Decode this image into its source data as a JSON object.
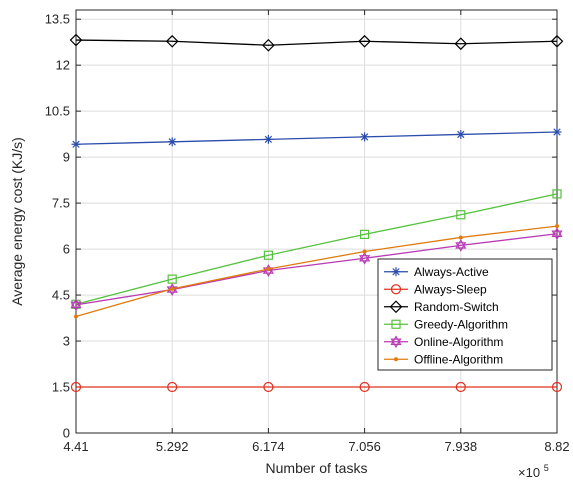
{
  "chart_data": {
    "type": "line",
    "title": "",
    "xlabel": "Number of tasks",
    "ylabel": "Average energy cost (KJ/s)",
    "x_exponent_label": "×10",
    "x_exponent_power": "5",
    "x": [
      4.41,
      5.292,
      6.174,
      7.056,
      7.938,
      8.82
    ],
    "x_tick_labels": [
      "4.41",
      "5.292",
      "6.174",
      "7.056",
      "7.938",
      "8.82"
    ],
    "xlim": [
      4.41,
      8.82
    ],
    "ylim": [
      0,
      13.8
    ],
    "y_ticks": [
      0,
      1.5,
      3,
      4.5,
      6,
      7.5,
      9,
      10.5,
      12,
      13.5
    ],
    "y_tick_labels": [
      "0",
      "1.5",
      "3",
      "4.5",
      "6",
      "7.5",
      "9",
      "10.5",
      "12",
      "13.5"
    ],
    "grid": true,
    "legend_position": "lower-right",
    "series": [
      {
        "name": "Always-Active",
        "color": "#2b4dab",
        "marker": "asterisk",
        "values": [
          9.42,
          9.5,
          9.58,
          9.66,
          9.74,
          9.82
        ]
      },
      {
        "name": "Always-Sleep",
        "color": "#e0301e",
        "marker": "circle",
        "values": [
          1.5,
          1.5,
          1.5,
          1.5,
          1.5,
          1.5
        ]
      },
      {
        "name": "Random-Switch",
        "color": "#000000",
        "marker": "diamond",
        "values": [
          12.82,
          12.78,
          12.65,
          12.78,
          12.7,
          12.78
        ]
      },
      {
        "name": "Greedy-Algorithm",
        "color": "#55c23d",
        "marker": "square",
        "values": [
          4.2,
          5.02,
          5.8,
          6.48,
          7.12,
          7.8
        ]
      },
      {
        "name": "Online-Algorithm",
        "color": "#b93ab5",
        "marker": "hexagram",
        "values": [
          4.18,
          4.68,
          5.3,
          5.7,
          6.12,
          6.5
        ]
      },
      {
        "name": "Offline-Algorithm",
        "color": "#e07b10",
        "marker": "dot",
        "values": [
          3.8,
          4.7,
          5.35,
          5.92,
          6.38,
          6.75
        ]
      }
    ]
  }
}
